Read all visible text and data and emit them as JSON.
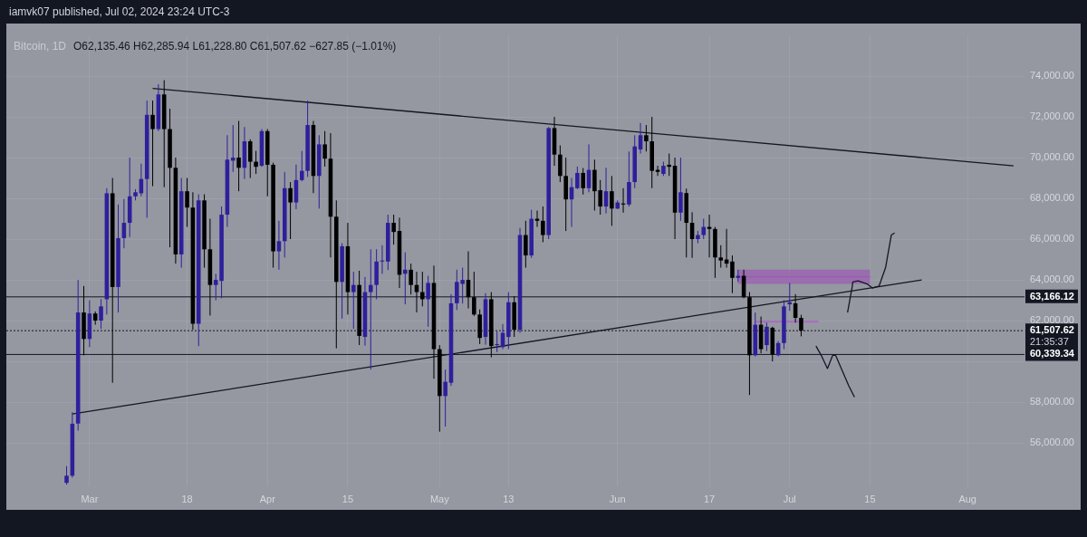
{
  "chart_data": {
    "type": "candlestick",
    "title": "Bitcoin, 1D",
    "subtitle": "O62,135.46 H62,285.94 L61,228.80 C61,507.62 −627.85 (−1.01%)",
    "annotations": [
      "iamvk07 published, Jul 02, 2024 23:24 UTC-3",
      "21:35:37"
    ],
    "xlim": [
      "2024-02-15T12:00",
      "2024-08-10T22:00"
    ],
    "xticks": [
      {
        "value": "2024-03-01",
        "label": "Mar"
      },
      {
        "value": "2024-03-18",
        "label": "18"
      },
      {
        "value": "2024-04-01",
        "label": "Apr"
      },
      {
        "value": "2024-04-15",
        "label": "15"
      },
      {
        "value": "2024-05-01",
        "label": "May"
      },
      {
        "value": "2024-05-13",
        "label": "13"
      },
      {
        "value": "2024-06-01",
        "label": "Jun"
      },
      {
        "value": "2024-06-17",
        "label": "17"
      },
      {
        "value": "2024-07-01",
        "label": "Jul"
      },
      {
        "value": "2024-07-15",
        "label": "15"
      },
      {
        "value": "2024-08-01",
        "label": "Aug"
      }
    ],
    "ylim": [
      53870,
      76020
    ],
    "yticks": [
      {
        "value": 56000,
        "label": "56,000.00"
      },
      {
        "value": 58000,
        "label": "58,000.00"
      },
      {
        "value": 60000,
        "label": null
      },
      {
        "value": 62000,
        "label": "62,000.00"
      },
      {
        "value": 64000,
        "label": "64,000.00"
      },
      {
        "value": 66000,
        "label": "66,000.00"
      },
      {
        "value": 68000,
        "label": "68,000.00"
      },
      {
        "value": 70000,
        "label": "70,000.00"
      },
      {
        "value": 72000,
        "label": "72,000.00"
      },
      {
        "value": 74000,
        "label": "74,000.00"
      }
    ],
    "grid": true,
    "ref_lines": [
      {
        "axis": "y",
        "value": 63166.12,
        "label": "63,166.12",
        "color": "#131722",
        "line_style": "solid"
      },
      {
        "axis": "y",
        "value": 60339.34,
        "label": "60,339.34",
        "color": "#131722",
        "line_style": "solid"
      },
      {
        "axis": "y",
        "value": 61507.62,
        "label": "61,507.62",
        "color": "#131722",
        "line_style": "dotted"
      }
    ],
    "series": [
      {
        "type": "line",
        "color": "#9b5bb3",
        "x": [
          "2024-06-22",
          "2024-07-15"
        ],
        "values": [
          64150,
          64150
        ],
        "lower": [
          63800,
          63800
        ],
        "upper": [
          64500,
          64500
        ]
      },
      {
        "type": "line",
        "color": "#a66cc0",
        "x": [
          "2024-06-25",
          "2024-07-06"
        ],
        "values": [
          61950,
          61950
        ],
        "lower": [
          61900,
          61900
        ],
        "upper": [
          62000,
          62000
        ]
      },
      {
        "type": "line",
        "color": "#131722",
        "x": [
          "2024-03-12",
          "2024-08-09"
        ],
        "values": [
          73400,
          69600
        ]
      },
      {
        "type": "line",
        "color": "#131722",
        "x": [
          "2024-02-27",
          "2024-07-24"
        ],
        "values": [
          57420,
          64000
        ]
      },
      {
        "type": "line",
        "color": "#131722",
        "x": [
          "2024-07-11T02:00",
          "2024-07-11T22:00",
          "2024-07-12T00:00",
          "2024-07-12T22:00",
          "2024-07-14T12:00",
          "2024-07-15T10:00",
          "2024-07-16T14:00",
          "2024-07-17T17:00",
          "2024-07-18T17:00",
          "2024-07-19T07:00"
        ],
        "values": [
          62400,
          63700,
          63900,
          63950,
          63800,
          63600,
          63700,
          64600,
          66200,
          66300
        ]
      },
      {
        "type": "line",
        "color": "#131722",
        "x": [
          "2024-07-05T14:00",
          "2024-07-06T14:00",
          "2024-07-07T14:00",
          "2024-07-08T12:00",
          "2024-07-09T00:00",
          "2024-07-10T00:00",
          "2024-07-11T07:00",
          "2024-07-12T07:00"
        ],
        "values": [
          60750,
          60250,
          59650,
          60300,
          60300,
          59650,
          58800,
          58250
        ]
      },
      {
        "type": "candlestick",
        "color": "#2e1f9c",
        "x": [
          "2024-02-26",
          "2024-02-27",
          "2024-02-28",
          "2024-03-01",
          "2024-03-03",
          "2024-03-04",
          "2024-03-06",
          "2024-03-07",
          "2024-03-08",
          "2024-03-09",
          "2024-03-10",
          "2024-03-11",
          "2024-03-13",
          "2024-03-17",
          "2024-03-20",
          "2024-03-23",
          "2024-03-24",
          "2024-03-25",
          "2024-03-26",
          "2024-03-28",
          "2024-03-31",
          "2024-04-03",
          "2024-04-04",
          "2024-04-06",
          "2024-04-07",
          "2024-04-08",
          "2024-04-10",
          "2024-04-14",
          "2024-04-16",
          "2024-04-18",
          "2024-04-19",
          "2024-04-20",
          "2024-04-21",
          "2024-04-22",
          "2024-04-25",
          "2024-04-29",
          "2024-05-02",
          "2024-05-03",
          "2024-05-04",
          "2024-05-05",
          "2024-05-09",
          "2024-05-11",
          "2024-05-12",
          "2024-05-13",
          "2024-05-15",
          "2024-05-17",
          "2024-05-20",
          "2024-05-24",
          "2024-05-25",
          "2024-05-27",
          "2024-05-30",
          "2024-06-01",
          "2024-06-03",
          "2024-06-04",
          "2024-06-05",
          "2024-06-09",
          "2024-06-12",
          "2024-06-15",
          "2024-06-16",
          "2024-06-22",
          "2024-06-25",
          "2024-06-27",
          "2024-06-29",
          "2024-06-30",
          "2024-07-01"
        ],
        "ohlc": [
          [
            54040,
            54860,
            53950,
            54390
          ],
          [
            54390,
            57500,
            54300,
            56940
          ],
          [
            56950,
            64000,
            56600,
            62400
          ],
          [
            61100,
            63000,
            60700,
            62350
          ],
          [
            62000,
            63050,
            61600,
            62700
          ],
          [
            63050,
            68500,
            62300,
            68250
          ],
          [
            63650,
            67700,
            62400,
            66050
          ],
          [
            66050,
            67970,
            65550,
            66800
          ],
          [
            66800,
            70000,
            66100,
            68100
          ],
          [
            68100,
            68450,
            67900,
            68300
          ],
          [
            68250,
            69700,
            68100,
            68950
          ],
          [
            68950,
            72800,
            67050,
            72100
          ],
          [
            71400,
            73600,
            71300,
            73100
          ],
          [
            65250,
            69000,
            64600,
            68350
          ],
          [
            61850,
            68200,
            60750,
            67900
          ],
          [
            63750,
            64300,
            63000,
            64000
          ],
          [
            63950,
            67600,
            63100,
            67200
          ],
          [
            67200,
            71100,
            66600,
            69900
          ],
          [
            69850,
            71600,
            69300,
            70000
          ],
          [
            69500,
            71500,
            68950,
            70800
          ],
          [
            69600,
            71400,
            69550,
            71300
          ],
          [
            65400,
            66900,
            64500,
            65900
          ],
          [
            65900,
            69300,
            65100,
            68500
          ],
          [
            67800,
            69660,
            67470,
            68900
          ],
          [
            68900,
            70330,
            68840,
            69350
          ],
          [
            69350,
            72800,
            69050,
            71600
          ],
          [
            69100,
            71100,
            67500,
            70650
          ],
          [
            63900,
            65800,
            62100,
            65650
          ],
          [
            63400,
            64400,
            61600,
            63750
          ],
          [
            61200,
            64140,
            60770,
            63400
          ],
          [
            63400,
            65500,
            59600,
            63750
          ],
          [
            63750,
            65500,
            63050,
            64900
          ],
          [
            64900,
            65700,
            64300,
            64950
          ],
          [
            64900,
            67200,
            64480,
            66800
          ],
          [
            64300,
            65350,
            62800,
            64500
          ],
          [
            63050,
            64200,
            61700,
            63850
          ],
          [
            58300,
            59600,
            56800,
            59000
          ],
          [
            58950,
            63300,
            58800,
            62850
          ],
          [
            62850,
            64500,
            62520,
            63900
          ],
          [
            63800,
            64600,
            62840,
            64000
          ],
          [
            61200,
            63350,
            60820,
            63050
          ],
          [
            60800,
            61470,
            60460,
            60850
          ],
          [
            60700,
            61830,
            60600,
            61400
          ],
          [
            61200,
            63400,
            60600,
            62900
          ],
          [
            61550,
            66550,
            61400,
            66200
          ],
          [
            65200,
            67440,
            65080,
            67000
          ],
          [
            66200,
            71500,
            66000,
            71450
          ],
          [
            67950,
            69000,
            66600,
            68550
          ],
          [
            68500,
            69560,
            68450,
            69250
          ],
          [
            68500,
            70650,
            68300,
            69400
          ],
          [
            67600,
            69500,
            67260,
            68350
          ],
          [
            67500,
            67900,
            67470,
            67800
          ],
          [
            67700,
            70300,
            67600,
            68800
          ],
          [
            68800,
            71100,
            68500,
            70550
          ],
          [
            70400,
            71700,
            70200,
            71100
          ],
          [
            69200,
            69800,
            69100,
            69600
          ],
          [
            67300,
            70000,
            66900,
            68300
          ],
          [
            66000,
            66400,
            65800,
            66200
          ],
          [
            66200,
            67000,
            66000,
            66600
          ],
          [
            64100,
            64500,
            63900,
            64200
          ],
          [
            60300,
            62400,
            60240,
            61800
          ],
          [
            60800,
            61900,
            60500,
            61700
          ],
          [
            60300,
            61000,
            60250,
            60900
          ],
          [
            60900,
            63000,
            60600,
            62700
          ],
          [
            62800,
            63850,
            62480,
            62900
          ]
        ]
      },
      {
        "type": "candlestick",
        "color": "#000000",
        "x": [
          "2024-02-29",
          "2024-03-02",
          "2024-03-05",
          "2024-03-12",
          "2024-03-14",
          "2024-03-15",
          "2024-03-16",
          "2024-03-18",
          "2024-03-19",
          "2024-03-21",
          "2024-03-22",
          "2024-03-27",
          "2024-03-29",
          "2024-03-30",
          "2024-04-01",
          "2024-04-02",
          "2024-04-05",
          "2024-04-09",
          "2024-04-11",
          "2024-04-12",
          "2024-04-13",
          "2024-04-15",
          "2024-04-17",
          "2024-04-23",
          "2024-04-24",
          "2024-04-26",
          "2024-04-27",
          "2024-04-28",
          "2024-04-30",
          "2024-05-01",
          "2024-05-06",
          "2024-05-07",
          "2024-05-08",
          "2024-05-10",
          "2024-05-14",
          "2024-05-16",
          "2024-05-18",
          "2024-05-19",
          "2024-05-21",
          "2024-05-22",
          "2024-05-23",
          "2024-05-26",
          "2024-05-28",
          "2024-05-29",
          "2024-05-31",
          "2024-06-02",
          "2024-06-06",
          "2024-06-07",
          "2024-06-08",
          "2024-06-10",
          "2024-06-11",
          "2024-06-13",
          "2024-06-14",
          "2024-06-17",
          "2024-06-18",
          "2024-06-19",
          "2024-06-20",
          "2024-06-21",
          "2024-06-23",
          "2024-06-24",
          "2024-06-26",
          "2024-06-28",
          "2024-07-02",
          "2024-07-03"
        ],
        "ohlc": [
          [
            62400,
            63700,
            60300,
            61100
          ],
          [
            62350,
            62450,
            61800,
            62000
          ],
          [
            68250,
            69000,
            58950,
            63650
          ],
          [
            72100,
            72800,
            68600,
            71400
          ],
          [
            73100,
            73800,
            68550,
            71400
          ],
          [
            71400,
            72400,
            65600,
            69500
          ],
          [
            69500,
            70000,
            64800,
            65250
          ],
          [
            68350,
            69000,
            66600,
            67550
          ],
          [
            67550,
            68300,
            61550,
            61850
          ],
          [
            67900,
            68200,
            64600,
            65500
          ],
          [
            65500,
            67000,
            62250,
            63750
          ],
          [
            70000,
            71800,
            68350,
            69500
          ],
          [
            70800,
            70900,
            69000,
            69800
          ],
          [
            69800,
            70330,
            69200,
            69550
          ],
          [
            71300,
            71400,
            68100,
            69650
          ],
          [
            69650,
            69750,
            64600,
            65400
          ],
          [
            68500,
            68800,
            66000,
            67800
          ],
          [
            71600,
            71800,
            68260,
            69100
          ],
          [
            70650,
            71300,
            69560,
            69950
          ],
          [
            69950,
            71200,
            65100,
            67100
          ],
          [
            67100,
            67900,
            60640,
            63900
          ],
          [
            65650,
            66800,
            62300,
            63400
          ],
          [
            63750,
            64450,
            60800,
            61250
          ],
          [
            66800,
            67200,
            65730,
            66350
          ],
          [
            66400,
            67050,
            63600,
            64250
          ],
          [
            64500,
            64800,
            63280,
            63750
          ],
          [
            63750,
            64400,
            62400,
            63400
          ],
          [
            63400,
            64400,
            62700,
            63050
          ],
          [
            63850,
            64700,
            59150,
            60600
          ],
          [
            60600,
            60800,
            56550,
            58300
          ],
          [
            64000,
            65400,
            62600,
            63150
          ],
          [
            63150,
            64400,
            62230,
            62300
          ],
          [
            62300,
            62550,
            60850,
            61150
          ],
          [
            63050,
            63400,
            60200,
            60750
          ],
          [
            62900,
            63200,
            61200,
            61550
          ],
          [
            66200,
            66900,
            64600,
            65200
          ],
          [
            67000,
            67400,
            66600,
            66900
          ],
          [
            66900,
            67600,
            65850,
            66200
          ],
          [
            71450,
            72000,
            69600,
            70150
          ],
          [
            70150,
            70600,
            68800,
            69100
          ],
          [
            69100,
            70000,
            66400,
            67950
          ],
          [
            69250,
            69490,
            68190,
            68500
          ],
          [
            69400,
            69900,
            67400,
            68350
          ],
          [
            68400,
            68900,
            67200,
            67600
          ],
          [
            68350,
            69100,
            66650,
            67500
          ],
          [
            67750,
            68500,
            67300,
            67700
          ],
          [
            71100,
            71600,
            70300,
            70800
          ],
          [
            70800,
            72000,
            68500,
            69350
          ],
          [
            69400,
            69600,
            69100,
            69300
          ],
          [
            69650,
            70200,
            69100,
            69550
          ],
          [
            69600,
            70000,
            66000,
            67300
          ],
          [
            68260,
            68480,
            65100,
            66800
          ],
          [
            66800,
            67320,
            65080,
            66000
          ],
          [
            66600,
            67200,
            65100,
            66500
          ],
          [
            66500,
            66600,
            64100,
            65100
          ],
          [
            65100,
            65700,
            64600,
            64950
          ],
          [
            65000,
            66500,
            64600,
            64800
          ],
          [
            64900,
            65200,
            63350,
            64100
          ],
          [
            64200,
            64500,
            63100,
            63150
          ],
          [
            63150,
            63400,
            58350,
            60300
          ],
          [
            61800,
            62200,
            60400,
            60600
          ],
          [
            61650,
            61700,
            60000,
            60350
          ],
          [
            62850,
            63300,
            61900,
            62135.46
          ],
          [
            62135.46,
            62285.94,
            61228.8,
            61507.62
          ]
        ]
      }
    ]
  }
}
